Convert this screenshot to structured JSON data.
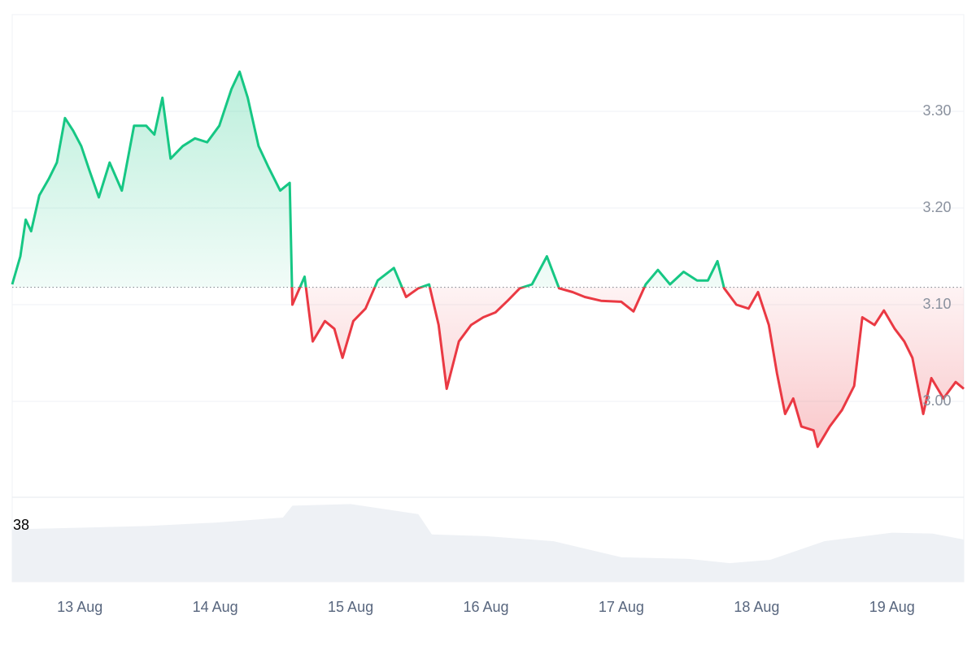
{
  "chart_data": {
    "type": "line",
    "x": [
      12.5,
      12.56,
      12.6,
      12.64,
      12.7,
      12.77,
      12.83,
      12.89,
      12.95,
      13.01,
      13.07,
      13.14,
      13.22,
      13.31,
      13.4,
      13.49,
      13.55,
      13.61,
      13.67,
      13.76,
      13.85,
      13.94,
      14.03,
      14.12,
      14.18,
      14.24,
      14.32,
      14.39,
      14.48,
      14.55,
      14.57,
      14.66,
      14.72,
      14.81,
      14.88,
      14.94,
      15.02,
      15.11,
      15.2,
      15.32,
      15.41,
      15.5,
      15.58,
      15.65,
      15.71,
      15.8,
      15.89,
      15.98,
      16.07,
      16.16,
      16.25,
      16.34,
      16.45,
      16.54,
      16.64,
      16.73,
      16.85,
      17.0,
      17.09,
      17.18,
      17.27,
      17.36,
      17.46,
      17.56,
      17.64,
      17.71,
      17.76,
      17.85,
      17.94,
      18.01,
      18.09,
      18.15,
      18.21,
      18.27,
      18.33,
      18.42,
      18.45,
      18.54,
      18.63,
      18.72,
      18.78,
      18.87,
      18.94,
      19.02,
      19.09,
      19.15,
      19.23,
      19.29,
      19.38,
      19.47,
      19.53
    ],
    "values": [
      3.121,
      3.15,
      3.188,
      3.176,
      3.213,
      3.23,
      3.247,
      3.293,
      3.28,
      3.264,
      3.239,
      3.211,
      3.247,
      3.218,
      3.285,
      3.285,
      3.276,
      3.314,
      3.251,
      3.264,
      3.272,
      3.268,
      3.285,
      3.323,
      3.341,
      3.314,
      3.264,
      3.243,
      3.218,
      3.226,
      3.1,
      3.129,
      3.062,
      3.083,
      3.075,
      3.045,
      3.083,
      3.096,
      3.125,
      3.138,
      3.108,
      3.117,
      3.121,
      3.079,
      3.013,
      3.062,
      3.079,
      3.087,
      3.092,
      3.104,
      3.117,
      3.121,
      3.15,
      3.117,
      3.113,
      3.108,
      3.104,
      3.103,
      3.093,
      3.121,
      3.136,
      3.121,
      3.134,
      3.125,
      3.125,
      3.145,
      3.117,
      3.1,
      3.096,
      3.113,
      3.079,
      3.029,
      2.987,
      3.003,
      2.974,
      2.97,
      2.953,
      2.974,
      2.991,
      3.016,
      3.087,
      3.079,
      3.094,
      3.075,
      3.062,
      3.045,
      2.987,
      3.024,
      3.003,
      3.02,
      3.013
    ],
    "baseline": 3.118,
    "up_color": "#16c784",
    "down_color": "#ea3943",
    "xlim": [
      12.5,
      19.53
    ],
    "ylim": [
      2.9,
      3.4
    ],
    "xticks": [
      {
        "value": 13,
        "label": "13 Aug"
      },
      {
        "value": 14,
        "label": "14 Aug"
      },
      {
        "value": 15,
        "label": "15 Aug"
      },
      {
        "value": 16,
        "label": "16 Aug"
      },
      {
        "value": 17,
        "label": "17 Aug"
      },
      {
        "value": 18,
        "label": "18 Aug"
      },
      {
        "value": 19,
        "label": "19 Aug"
      }
    ],
    "yticks": [
      {
        "value": 3.0,
        "label": "3.00"
      },
      {
        "value": 3.1,
        "label": "3.10"
      },
      {
        "value": 3.2,
        "label": "3.20"
      },
      {
        "value": 3.3,
        "label": "3.30"
      }
    ],
    "grid": true,
    "volume": {
      "label": "38",
      "color": "#eef1f5",
      "x": [
        12.5,
        13.0,
        13.5,
        14.0,
        14.5,
        14.57,
        15.0,
        15.5,
        15.6,
        16.0,
        16.5,
        17.0,
        17.5,
        17.8,
        18.1,
        18.5,
        19.0,
        19.3,
        19.53
      ],
      "values": [
        62,
        64,
        66,
        70,
        76,
        90,
        92,
        80,
        56,
        54,
        48,
        29,
        27,
        22,
        26,
        48,
        58,
        57,
        50
      ],
      "ylim": [
        0,
        100
      ]
    }
  }
}
